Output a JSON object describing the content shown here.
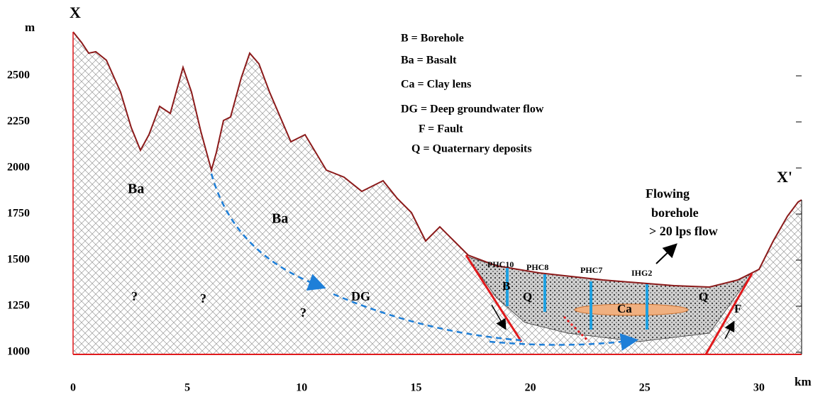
{
  "section": {
    "start_label": "X",
    "end_label": "X'",
    "y_unit": "m",
    "x_unit": "km",
    "yticks": [
      1000,
      1250,
      1500,
      1750,
      2000,
      2250,
      2500
    ],
    "xticks": [
      0,
      5,
      10,
      15,
      20,
      25,
      30
    ],
    "legend": [
      "B = Borehole",
      "Ba = Basalt",
      "Ca = Clay lens",
      "DG = Deep groundwater flow",
      "F = Fault",
      "Q = Quaternary deposits"
    ],
    "labels": [
      "Ba",
      "Ba",
      "?",
      "?",
      "?",
      "DG",
      "B",
      "Q",
      "Ca",
      "Q",
      "F"
    ],
    "boreholes": [
      "PHC10",
      "PHC8",
      "PHC7",
      "IHG2"
    ],
    "annotation": [
      "Flowing",
      "borehole",
      "> 20 lps  flow"
    ]
  }
}
